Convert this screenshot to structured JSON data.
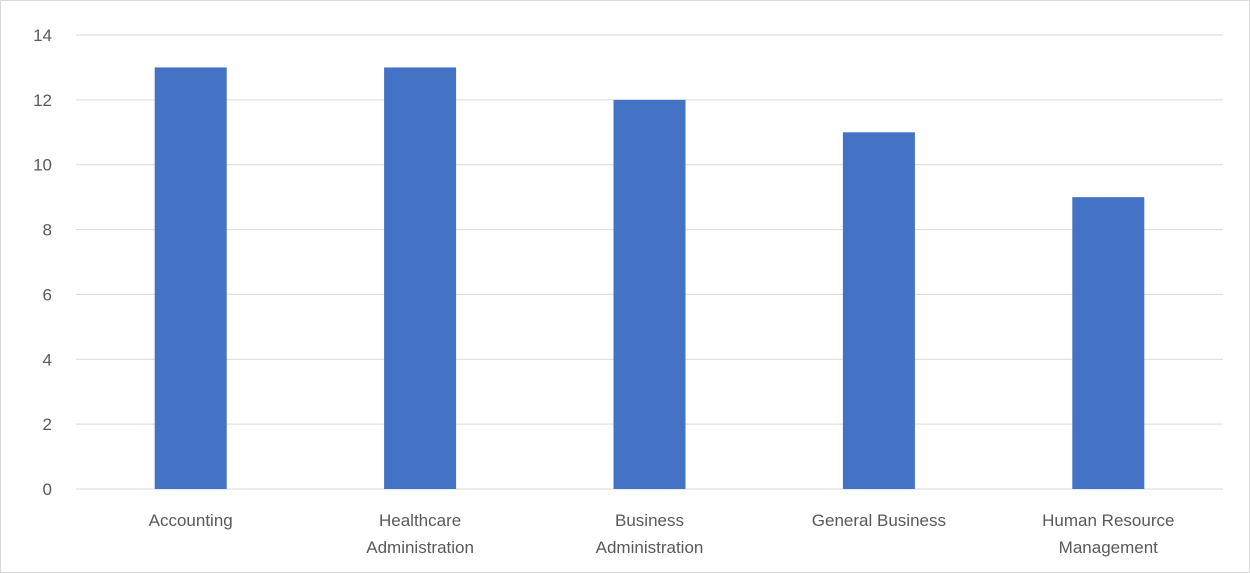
{
  "chart_data": {
    "type": "bar",
    "categories": [
      [
        "Accounting"
      ],
      [
        "Healthcare",
        "Administration"
      ],
      [
        "Business",
        "Administration"
      ],
      [
        "General Business"
      ],
      [
        "Human Resource",
        "Management"
      ]
    ],
    "values": [
      13,
      13,
      12,
      11,
      9
    ],
    "ylim": [
      0,
      14
    ],
    "yticks": [
      0,
      2,
      4,
      6,
      8,
      10,
      12,
      14
    ],
    "grid": true,
    "bar_color": "#4472C4",
    "title": "",
    "xlabel": "",
    "ylabel": ""
  }
}
